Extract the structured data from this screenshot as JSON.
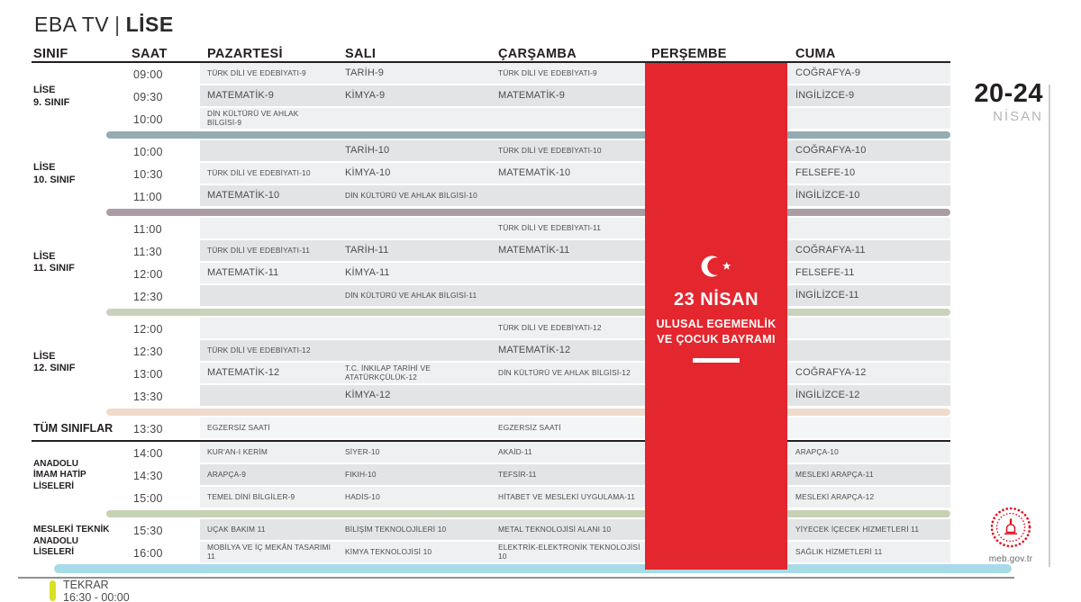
{
  "logo": {
    "brand": "EBA TV",
    "divider": "|",
    "section": "LİSE"
  },
  "date_badge": {
    "range": "20-24",
    "month": "NİSAN"
  },
  "holiday": {
    "title": "23 NİSAN",
    "subtitle1": "ULUSAL EGEMENLİK",
    "subtitle2": "VE ÇOCUK BAYRAMI",
    "banner_color": "#e4262f",
    "flag_icon": "crescent-star-icon"
  },
  "colors": {
    "stripe_light": "#eff0f2",
    "stripe_dark": "#e2e4e6",
    "stripe_white": "#f4f5f6",
    "cyan_bar": "#a8dbe8",
    "tekrar_bar": "#d9e021",
    "meb_red": "#e30a17"
  },
  "table": {
    "headers": {
      "sinif": "SINIF",
      "saat": "SAAT",
      "days": [
        "PAZARTESİ",
        "SALI",
        "ÇARŞAMBA",
        "PERŞEMBE",
        "CUMA"
      ]
    },
    "day_keys": [
      "pazartesi",
      "sali",
      "carsamba",
      "persembe",
      "cuma"
    ],
    "sections": [
      {
        "id": "lise-9",
        "label_lines": [
          "LİSE",
          "9. SINIF"
        ],
        "label_size": "md",
        "small_font": false,
        "stripe_start": "light",
        "divider_after": "#94acb2",
        "rows": [
          {
            "time": "09:00",
            "cells": [
              "TÜRK DİLİ VE EDEBİYATI-9",
              "TARİH-9",
              "TÜRK DİLİ VE EDEBİYATI-9",
              "",
              "COĞRAFYA-9"
            ]
          },
          {
            "time": "09:30",
            "cells": [
              "MATEMATİK-9",
              "KİMYA-9",
              "MATEMATİK-9",
              "",
              "İNGİLİZCE-9"
            ]
          },
          {
            "time": "10:00",
            "cells": [
              "DİN KÜLTÜRÜ VE AHLAK BİLGİSİ-9",
              "",
              "",
              "",
              ""
            ]
          }
        ]
      },
      {
        "id": "lise-10",
        "label_lines": [
          "LİSE",
          "10. SINIF"
        ],
        "label_size": "md",
        "small_font": false,
        "stripe_start": "dark",
        "divider_after": "#ab9da5",
        "rows": [
          {
            "time": "10:00",
            "cells": [
              "",
              "TARİH-10",
              "TÜRK DİLİ VE EDEBİYATI-10",
              "",
              "COĞRAFYA-10"
            ]
          },
          {
            "time": "10:30",
            "cells": [
              "TÜRK DİLİ VE EDEBİYATI-10",
              "KİMYA-10",
              "MATEMATİK-10",
              "",
              "FELSEFE-10"
            ]
          },
          {
            "time": "11:00",
            "cells": [
              "MATEMATİK-10",
              "DİN KÜLTÜRÜ VE AHLAK BİLGİSİ-10",
              "",
              "",
              "İNGİLİZCE-10"
            ]
          }
        ]
      },
      {
        "id": "lise-11",
        "label_lines": [
          "LİSE",
          "11. SINIF"
        ],
        "label_size": "md",
        "small_font": false,
        "stripe_start": "light",
        "divider_after": "#c9d3bb",
        "rows": [
          {
            "time": "11:00",
            "cells": [
              "",
              "",
              "TÜRK DİLİ VE EDEBİYATI-11",
              "",
              ""
            ]
          },
          {
            "time": "11:30",
            "cells": [
              "TÜRK DİLİ VE EDEBİYATI-11",
              "TARİH-11",
              "MATEMATİK-11",
              "",
              "COĞRAFYA-11"
            ]
          },
          {
            "time": "12:00",
            "cells": [
              "MATEMATİK-11",
              "KİMYA-11",
              "",
              "",
              "FELSEFE-11"
            ]
          },
          {
            "time": "12:30",
            "cells": [
              "",
              "DİN KÜLTÜRÜ VE AHLAK BİLGİSİ-11",
              "",
              "",
              "İNGİLİZCE-11"
            ]
          }
        ]
      },
      {
        "id": "lise-12",
        "label_lines": [
          "LİSE",
          "12. SINIF"
        ],
        "label_size": "md",
        "small_font": false,
        "stripe_start": "light",
        "divider_after": "#efdbcb",
        "rows": [
          {
            "time": "12:00",
            "cells": [
              "",
              "",
              "TÜRK DİLİ VE EDEBİYATI-12",
              "",
              ""
            ]
          },
          {
            "time": "12:30",
            "cells": [
              "TÜRK DİLİ VE EDEBİYATI-12",
              "",
              "MATEMATİK-12",
              "",
              ""
            ]
          },
          {
            "time": "13:00",
            "cells": [
              "MATEMATİK-12",
              "T.C. İNKILAP TARİHİ VE ATATÜRKÇÜLÜK-12",
              "DİN KÜLTÜRÜ VE AHLAK BİLGİSİ-12",
              "",
              "COĞRAFYA-12"
            ]
          },
          {
            "time": "13:30",
            "cells": [
              "",
              "KİMYA-12",
              "",
              "",
              "İNGİLİZCE-12"
            ]
          }
        ]
      },
      {
        "id": "tum-siniflar",
        "label_lines": [
          "TÜM SINIFLAR"
        ],
        "label_size": "lg",
        "small_font": true,
        "stripe_start": "white",
        "divider_after": "dark-line",
        "rows": [
          {
            "time": "13:30",
            "cells": [
              "EGZERSİZ SAATİ",
              "",
              "EGZERSİZ SAATİ",
              "",
              ""
            ]
          }
        ]
      },
      {
        "id": "imam-hatip",
        "label_lines": [
          "ANADOLU",
          "İMAM HATİP",
          "LİSELERİ"
        ],
        "label_size": "sm",
        "small_font": true,
        "stripe_start": "light",
        "divider_after": "#c6d2b6",
        "rows": [
          {
            "time": "14:00",
            "cells": [
              "KUR'AN-I KERİM",
              "SİYER-10",
              "AKAİD-11",
              "",
              "ARAPÇA-10"
            ]
          },
          {
            "time": "14:30",
            "cells": [
              "ARAPÇA-9",
              "FIKIH-10",
              "TEFSİR-11",
              "",
              "MESLEKİ ARAPÇA-11"
            ]
          },
          {
            "time": "15:00",
            "cells": [
              "TEMEL DİNİ BİLGİLER-9",
              "HADİS-10",
              "HİTABET VE MESLEKİ UYGULAMA-11",
              "",
              "MESLEKİ ARAPÇA-12"
            ]
          }
        ]
      },
      {
        "id": "mesleki-teknik",
        "label_lines": [
          "MESLEKİ TEKNİK",
          "ANADOLU",
          "LİSELERİ"
        ],
        "label_size": "sm",
        "small_font": true,
        "stripe_start": "dark",
        "divider_after": null,
        "rows": [
          {
            "time": "15:30",
            "cells": [
              "UÇAK BAKIM 11",
              "BİLİŞİM TEKNOLOJİLERİ 10",
              "METAL TEKNOLOJİSİ ALANI 10",
              "",
              "YİYECEK İÇECEK HİZMETLERİ 11"
            ]
          },
          {
            "time": "16:00",
            "cells": [
              "MOBİLYA VE İÇ MEKÂN TASARIMI 11",
              "KİMYA TEKNOLOJİSİ 10",
              "ELEKTRİK-ELEKTRONİK TEKNOLOJİSİ 10",
              "",
              "SAĞLIK HİZMETLERİ 11"
            ]
          }
        ]
      }
    ]
  },
  "footer": {
    "repeat_label": "TEKRAR",
    "repeat_hours": "16:30 - 00:00",
    "website": "meb.gov.tr"
  }
}
